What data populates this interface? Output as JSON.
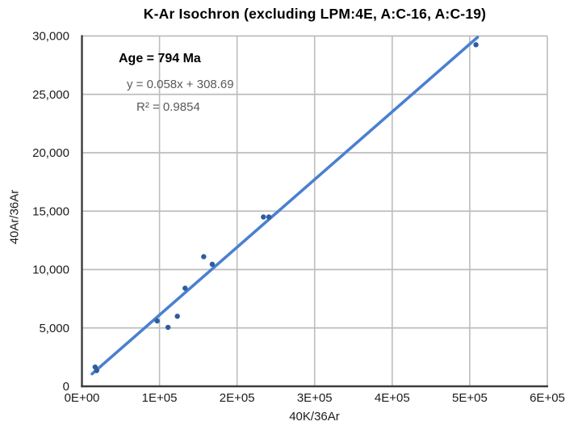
{
  "title": "K-Ar Isochron (excluding LPM:4E, A:C-16, A:C-19)",
  "annotation": {
    "age": "Age = 794 Ma",
    "equation": "y = 0.058x + 308.69",
    "r_squared": "R² = 0.9854"
  },
  "chart_data": {
    "type": "scatter",
    "title": "K-Ar Isochron (excluding LPM:4E, A:C-16, A:C-19)",
    "xlabel": "40K/36Ar",
    "ylabel": "40Ar/36Ar",
    "xlim": [
      0,
      600000
    ],
    "ylim": [
      0,
      30000
    ],
    "grid": true,
    "legend_position": "none",
    "x_ticks": {
      "values": [
        0,
        100000,
        200000,
        300000,
        400000,
        500000,
        600000
      ],
      "labels": [
        "0E+00",
        "1E+05",
        "2E+05",
        "3E+05",
        "4E+05",
        "5E+05",
        "6E+05"
      ]
    },
    "y_ticks": {
      "values": [
        0,
        5000,
        10000,
        15000,
        20000,
        25000,
        30000
      ],
      "labels": [
        "0",
        "5,000",
        "10,000",
        "15,000",
        "20,000",
        "25,000",
        "30,000"
      ]
    },
    "points": [
      [
        17000,
        1650
      ],
      [
        19000,
        1350
      ],
      [
        97000,
        5600
      ],
      [
        111000,
        5050
      ],
      [
        123000,
        6000
      ],
      [
        133000,
        8400
      ],
      [
        157000,
        11100
      ],
      [
        168000,
        10450
      ],
      [
        234000,
        14500
      ],
      [
        241000,
        14500
      ],
      [
        508000,
        29250
      ]
    ],
    "trendline": {
      "slope": 0.058,
      "intercept": 308.69,
      "r2": 0.9854,
      "x_start": 13000,
      "x_end": 510000,
      "equation": "y = 0.058x + 308.69"
    },
    "age_estimate": "794 Ma",
    "colors": {
      "point": "#2e5c9e",
      "trendline": "#4a80d0",
      "grid": "#bdbdbd",
      "axis": "#3d3d3d",
      "tick_text": "#1c1c1c",
      "annotation_text": "#595959",
      "title_text": "#000000"
    }
  }
}
